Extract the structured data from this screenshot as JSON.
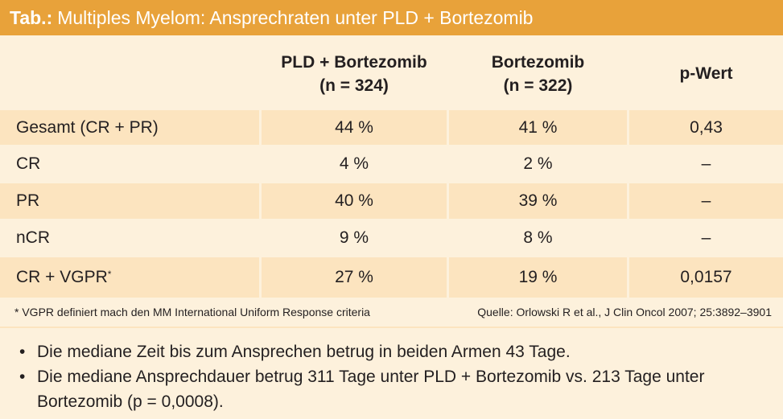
{
  "title": {
    "prefix": "Tab.:",
    "text": "Multiples Myelom: Ansprechraten unter PLD + Bortezomib"
  },
  "table": {
    "headers": [
      {
        "line1": "",
        "line2": ""
      },
      {
        "line1": "PLD + Bortezomib",
        "line2": "(n = 324)"
      },
      {
        "line1": "Bortezomib",
        "line2": "(n = 322)"
      },
      {
        "line1": "p-Wert",
        "line2": ""
      }
    ],
    "rows": [
      {
        "label": "Gesamt (CR + PR)",
        "sup": "",
        "a": "44 %",
        "b": "41 %",
        "p": "0,43"
      },
      {
        "label": "CR",
        "sup": "",
        "a": "4 %",
        "b": "2 %",
        "p": "–"
      },
      {
        "label": "PR",
        "sup": "",
        "a": "40 %",
        "b": "39 %",
        "p": "–"
      },
      {
        "label": "nCR",
        "sup": "",
        "a": "9 %",
        "b": "8 %",
        "p": "–"
      },
      {
        "label": "CR + VGPR",
        "sup": "*",
        "a": "27 %",
        "b": "19 %",
        "p": "0,0157"
      }
    ]
  },
  "footnote": {
    "left": "* VGPR definiert mach den MM International Uniform Response criteria",
    "right": "Quelle: Orlowski R et al., J Clin Oncol 2007; 25:3892–3901"
  },
  "notes": [
    "Die mediane Zeit bis zum Ansprechen betrug in beiden Armen 43 Tage.",
    "Die mediane Ansprechdauer betrug 311 Tage unter PLD + Bortezomib vs. 213 Tage unter Bortezomib (p = 0,0008)."
  ],
  "bullet": "•"
}
